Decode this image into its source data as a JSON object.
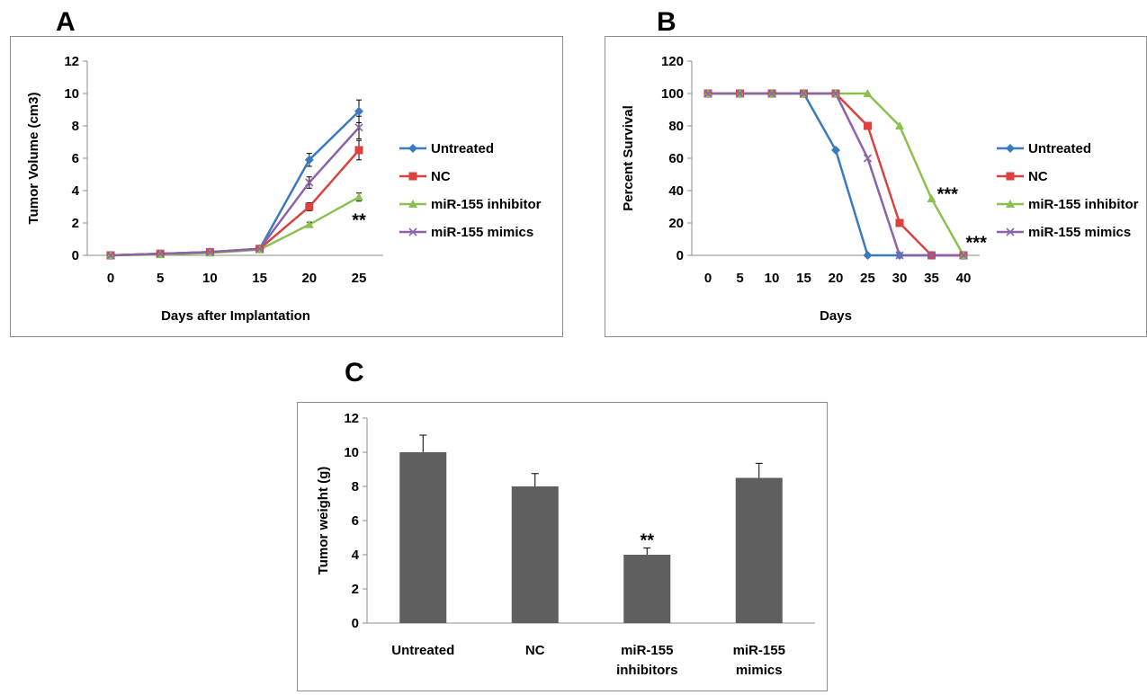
{
  "colors": {
    "untreated": "#3a7bbf",
    "nc": "#d9423f",
    "inhibitor": "#8cc152",
    "mimics": "#8a63a8",
    "bar": "#5f5f5f",
    "axis": "#8c8c8c"
  },
  "chart_data": [
    {
      "panel": "A",
      "type": "line",
      "xlabel": "Days after Implantation",
      "ylabel": "Tumor Volume (cm3)",
      "x": [
        0,
        5,
        10,
        15,
        20,
        25
      ],
      "xticks": [
        "0",
        "5",
        "10",
        "15",
        "20",
        "25"
      ],
      "yticks": [
        "0",
        "2",
        "4",
        "6",
        "8",
        "10",
        "12"
      ],
      "ylim": [
        0,
        12
      ],
      "grid": false,
      "legend": "right",
      "series": [
        {
          "name": "Untreated",
          "color": "#3a7bbf",
          "marker": "diamond",
          "values": [
            0,
            0.1,
            0.2,
            0.4,
            5.9,
            8.9
          ],
          "errors": [
            0,
            0,
            0,
            0,
            0.4,
            0.7
          ]
        },
        {
          "name": "NC",
          "color": "#d9423f",
          "marker": "square",
          "values": [
            0,
            0.1,
            0.2,
            0.4,
            3.0,
            6.5
          ],
          "errors": [
            0,
            0,
            0,
            0,
            0.25,
            0.6
          ]
        },
        {
          "name": "miR-155 inhibitor",
          "color": "#8cc152",
          "marker": "triangle",
          "values": [
            0,
            0.05,
            0.15,
            0.35,
            1.9,
            3.6
          ],
          "errors": [
            0,
            0,
            0,
            0,
            0.15,
            0.25
          ]
        },
        {
          "name": "miR-155 mimics",
          "color": "#8a63a8",
          "marker": "x",
          "values": [
            0,
            0.1,
            0.2,
            0.4,
            4.5,
            7.9
          ],
          "errors": [
            0,
            0,
            0,
            0,
            0.35,
            0.7
          ]
        }
      ],
      "annotations": [
        {
          "text": "**",
          "x": 25,
          "y": 2.2
        }
      ]
    },
    {
      "panel": "B",
      "type": "line",
      "xlabel": "Days",
      "ylabel": "Percent  Survival",
      "x": [
        0,
        5,
        10,
        15,
        20,
        25,
        30,
        35,
        40
      ],
      "xticks": [
        "0",
        "5",
        "10",
        "15",
        "20",
        "25",
        "30",
        "35",
        "40"
      ],
      "yticks": [
        "0",
        "20",
        "40",
        "60",
        "80",
        "100",
        "120"
      ],
      "ylim": [
        0,
        120
      ],
      "grid": false,
      "legend": "right",
      "series": [
        {
          "name": "Untreated",
          "color": "#3a7bbf",
          "marker": "diamond",
          "values": [
            100,
            100,
            100,
            100,
            65,
            0,
            0,
            0,
            0
          ]
        },
        {
          "name": "NC",
          "color": "#d9423f",
          "marker": "square",
          "values": [
            100,
            100,
            100,
            100,
            100,
            80,
            20,
            0,
            0
          ]
        },
        {
          "name": "miR-155 inhibitor",
          "color": "#8cc152",
          "marker": "triangle",
          "values": [
            100,
            100,
            100,
            100,
            100,
            100,
            80,
            35,
            0
          ]
        },
        {
          "name": "miR-155 mimics",
          "color": "#8a63a8",
          "marker": "x",
          "values": [
            100,
            100,
            100,
            100,
            100,
            60,
            0,
            0,
            0
          ]
        }
      ],
      "annotations": [
        {
          "text": "***",
          "x": 37.5,
          "y": 38
        },
        {
          "text": "***",
          "x": 42,
          "y": 8
        }
      ]
    },
    {
      "panel": "C",
      "type": "bar",
      "xlabel": "",
      "ylabel": "Tumor weight (g)",
      "categories": [
        [
          "Untreated"
        ],
        [
          "NC"
        ],
        [
          "miR-155",
          "inhibitors"
        ],
        [
          "miR-155",
          "mimics"
        ]
      ],
      "values": [
        10,
        8,
        4,
        8.5
      ],
      "errors": [
        1.0,
        0.75,
        0.4,
        0.85
      ],
      "yticks": [
        "0",
        "2",
        "4",
        "6",
        "8",
        "10",
        "12"
      ],
      "ylim": [
        0,
        12
      ],
      "grid": false,
      "annotations": [
        {
          "text": "**",
          "index": 2
        }
      ]
    }
  ]
}
